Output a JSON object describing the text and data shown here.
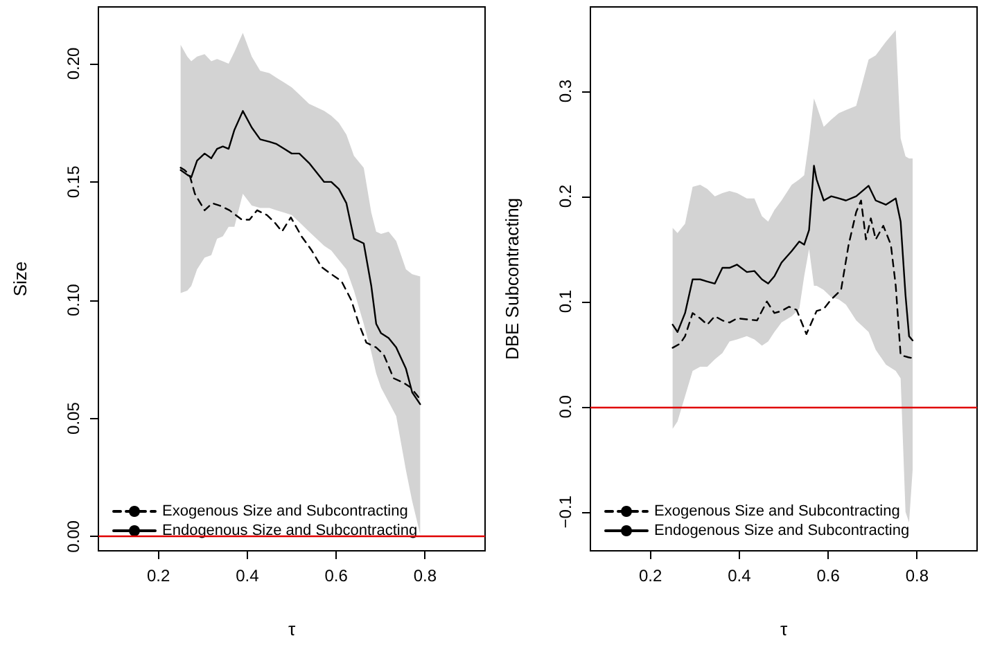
{
  "chart_data": [
    {
      "type": "line",
      "xlabel": "τ",
      "ylabel": "Size",
      "xlim": [
        0.065,
        0.935
      ],
      "ylim": [
        -0.006,
        0.224
      ],
      "xticks": [
        0.2,
        0.4,
        0.6,
        0.8
      ],
      "yticks": [
        {
          "value": 0,
          "label": "0.00"
        },
        {
          "value": 0.05,
          "label": "0.05"
        },
        {
          "value": 0.1,
          "label": "0.10"
        },
        {
          "value": 0.15,
          "label": "0.15"
        },
        {
          "value": 0.2,
          "label": "0.20"
        }
      ],
      "grid": false,
      "legend": "bottom left",
      "marker": "none",
      "ref_lines": [
        {
          "axis": "y",
          "value": 0,
          "label": null,
          "color": "#e00000"
        }
      ],
      "series": [
        {
          "name": "Exogenous Size and Subcontracting",
          "color": "#000000",
          "line_style": "dashed",
          "x": [
            0.25,
            0.259,
            0.27,
            0.282,
            0.304,
            0.321,
            0.338,
            0.36,
            0.388,
            0.405,
            0.422,
            0.444,
            0.461,
            0.478,
            0.498,
            0.522,
            0.545,
            0.567,
            0.589,
            0.612,
            0.634,
            0.651,
            0.668,
            0.69,
            0.707,
            0.729,
            0.752,
            0.768,
            0.785
          ],
          "values": [
            0.156,
            0.155,
            0.153,
            0.145,
            0.138,
            0.141,
            0.14,
            0.138,
            0.134,
            0.134,
            0.138,
            0.136,
            0.133,
            0.129,
            0.135,
            0.127,
            0.121,
            0.114,
            0.111,
            0.108,
            0.1,
            0.09,
            0.082,
            0.08,
            0.077,
            0.067,
            0.065,
            0.063,
            0.059
          ]
        },
        {
          "name": "Endogenous Size and Subcontracting",
          "color": "#000000",
          "line_style": "solid",
          "x": [
            0.25,
            0.265,
            0.274,
            0.287,
            0.304,
            0.319,
            0.332,
            0.345,
            0.358,
            0.371,
            0.39,
            0.41,
            0.429,
            0.45,
            0.466,
            0.483,
            0.5,
            0.517,
            0.539,
            0.573,
            0.589,
            0.606,
            0.623,
            0.64,
            0.662,
            0.679,
            0.69,
            0.701,
            0.718,
            0.735,
            0.757,
            0.771,
            0.789
          ],
          "values": [
            0.155,
            0.153,
            0.152,
            0.159,
            0.162,
            0.16,
            0.164,
            0.165,
            0.164,
            0.172,
            0.18,
            0.173,
            0.168,
            0.167,
            0.166,
            0.164,
            0.162,
            0.162,
            0.158,
            0.15,
            0.15,
            0.147,
            0.141,
            0.126,
            0.124,
            0.106,
            0.09,
            0.086,
            0.084,
            0.08,
            0.071,
            0.061,
            0.056
          ],
          "upper": [
            0.208,
            0.203,
            0.201,
            0.203,
            0.204,
            0.201,
            0.202,
            0.201,
            0.2,
            0.205,
            0.213,
            0.203,
            0.197,
            0.196,
            0.194,
            0.192,
            0.19,
            0.187,
            0.183,
            0.18,
            0.178,
            0.175,
            0.17,
            0.161,
            0.156,
            0.137,
            0.129,
            0.128,
            0.129,
            0.125,
            0.113,
            0.111,
            0.11
          ],
          "lower": [
            0.103,
            0.104,
            0.106,
            0.113,
            0.118,
            0.119,
            0.126,
            0.127,
            0.131,
            0.131,
            0.145,
            0.14,
            0.139,
            0.139,
            0.138,
            0.137,
            0.136,
            0.133,
            0.129,
            0.123,
            0.121,
            0.117,
            0.113,
            0.104,
            0.09,
            0.078,
            0.069,
            0.063,
            0.057,
            0.051,
            0.028,
            0.015,
            0.001
          ]
        }
      ]
    },
    {
      "type": "line",
      "xlabel": "τ",
      "ylabel": "DBE Subcontracting",
      "xlim": [
        0.065,
        0.935
      ],
      "ylim": [
        -0.137,
        0.38
      ],
      "xticks": [
        0.2,
        0.4,
        0.6,
        0.8
      ],
      "yticks": [
        {
          "value": -0.1,
          "label": "−0.1"
        },
        {
          "value": 0,
          "label": "0.0"
        },
        {
          "value": 0.1,
          "label": "0.1"
        },
        {
          "value": 0.2,
          "label": "0.2"
        },
        {
          "value": 0.3,
          "label": "0.3"
        }
      ],
      "grid": false,
      "legend": "bottom left",
      "marker": "none",
      "ref_lines": [
        {
          "axis": "y",
          "value": 0,
          "label": null,
          "color": "#e00000"
        }
      ],
      "series": [
        {
          "name": "Exogenous Size and Subcontracting",
          "color": "#000000",
          "line_style": "dashed",
          "x": [
            0.25,
            0.267,
            0.278,
            0.295,
            0.312,
            0.328,
            0.345,
            0.362,
            0.378,
            0.395,
            0.417,
            0.44,
            0.462,
            0.479,
            0.495,
            0.512,
            0.529,
            0.551,
            0.574,
            0.59,
            0.607,
            0.629,
            0.646,
            0.663,
            0.674,
            0.685,
            0.696,
            0.707,
            0.724,
            0.741,
            0.752,
            0.763,
            0.78,
            0.791
          ],
          "values": [
            0.056,
            0.06,
            0.067,
            0.089,
            0.084,
            0.078,
            0.086,
            0.082,
            0.08,
            0.084,
            0.083,
            0.082,
            0.1,
            0.089,
            0.091,
            0.095,
            0.092,
            0.069,
            0.091,
            0.093,
            0.102,
            0.111,
            0.154,
            0.185,
            0.196,
            0.159,
            0.179,
            0.159,
            0.172,
            0.154,
            0.115,
            0.049,
            0.047,
            0.046
          ]
        },
        {
          "name": "Endogenous Size and Subcontracting",
          "color": "#000000",
          "line_style": "solid",
          "x": [
            0.25,
            0.261,
            0.278,
            0.295,
            0.312,
            0.328,
            0.345,
            0.362,
            0.378,
            0.395,
            0.417,
            0.434,
            0.451,
            0.465,
            0.479,
            0.495,
            0.518,
            0.535,
            0.546,
            0.557,
            0.568,
            0.574,
            0.59,
            0.607,
            0.624,
            0.64,
            0.663,
            0.691,
            0.707,
            0.73,
            0.752,
            0.763,
            0.774,
            0.782,
            0.79
          ],
          "values": [
            0.078,
            0.071,
            0.089,
            0.121,
            0.121,
            0.119,
            0.117,
            0.132,
            0.132,
            0.135,
            0.128,
            0.129,
            0.121,
            0.117,
            0.124,
            0.137,
            0.148,
            0.157,
            0.154,
            0.168,
            0.229,
            0.216,
            0.196,
            0.2,
            0.198,
            0.196,
            0.2,
            0.21,
            0.196,
            0.192,
            0.198,
            0.176,
            0.106,
            0.067,
            0.063
          ],
          "upper": [
            0.17,
            0.165,
            0.174,
            0.209,
            0.211,
            0.207,
            0.2,
            0.203,
            0.205,
            0.203,
            0.198,
            0.198,
            0.181,
            0.176,
            0.187,
            0.196,
            0.211,
            0.216,
            0.22,
            0.253,
            0.293,
            0.286,
            0.266,
            0.273,
            0.279,
            0.282,
            0.286,
            0.33,
            0.334,
            0.347,
            0.358,
            0.255,
            0.238,
            0.236,
            0.236
          ],
          "lower": [
            -0.021,
            -0.014,
            0.01,
            0.034,
            0.038,
            0.038,
            0.045,
            0.051,
            0.062,
            0.064,
            0.067,
            0.064,
            0.058,
            0.062,
            0.071,
            0.08,
            0.086,
            0.093,
            0.124,
            0.15,
            0.115,
            0.115,
            0.111,
            0.104,
            0.102,
            0.097,
            0.082,
            0.071,
            0.054,
            0.04,
            0.034,
            0.027,
            -0.1,
            -0.11,
            -0.06
          ]
        }
      ]
    }
  ]
}
